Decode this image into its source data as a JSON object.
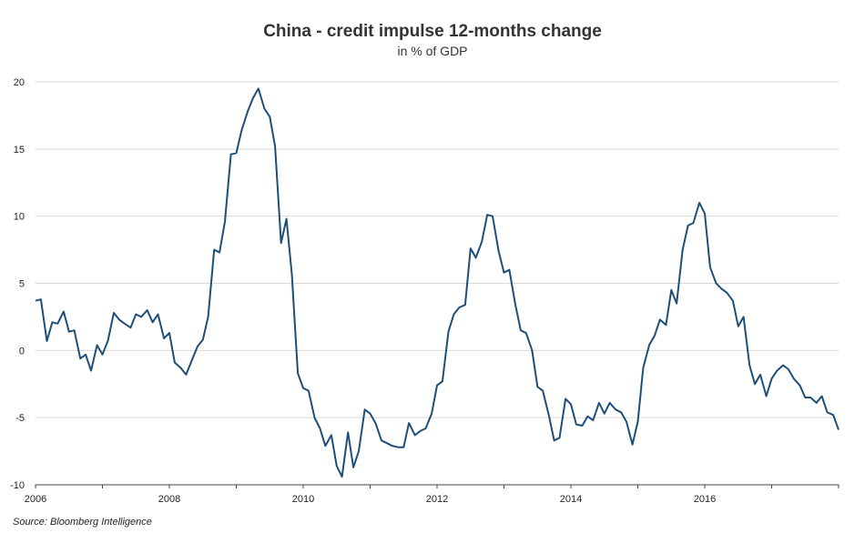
{
  "header": {
    "title": "China - credit impulse 12-months change",
    "subtitle": "in % of GDP"
  },
  "footer": {
    "source": "Source: Bloomberg Intelligence"
  },
  "chart_data": {
    "type": "line",
    "title": "China - credit impulse 12-months change",
    "subtitle": "in % of GDP",
    "xlabel": "",
    "ylabel": "",
    "xlim": [
      2006,
      2018
    ],
    "ylim": [
      -10,
      20
    ],
    "y_ticks": [
      20,
      15,
      10,
      5,
      0,
      -5,
      -10
    ],
    "x_ticks": [
      2006,
      2008,
      2010,
      2012,
      2014,
      2016
    ],
    "grid": "horizontal",
    "line_color": "#1f4e79",
    "grid_color": "#d9d9d9",
    "series": [
      {
        "values": [
          [
            2006.0,
            3.7
          ],
          [
            2006.08,
            3.8
          ],
          [
            2006.17,
            0.7
          ],
          [
            2006.25,
            2.1
          ],
          [
            2006.33,
            2.0
          ],
          [
            2006.42,
            2.9
          ],
          [
            2006.5,
            1.4
          ],
          [
            2006.58,
            1.5
          ],
          [
            2006.67,
            -0.6
          ],
          [
            2006.75,
            -0.3
          ],
          [
            2006.83,
            -1.5
          ],
          [
            2006.92,
            0.4
          ],
          [
            2007.0,
            -0.3
          ],
          [
            2007.08,
            0.7
          ],
          [
            2007.17,
            2.8
          ],
          [
            2007.25,
            2.3
          ],
          [
            2007.33,
            2.0
          ],
          [
            2007.42,
            1.7
          ],
          [
            2007.5,
            2.7
          ],
          [
            2007.58,
            2.5
          ],
          [
            2007.67,
            3.0
          ],
          [
            2007.75,
            2.1
          ],
          [
            2007.83,
            2.7
          ],
          [
            2007.92,
            0.9
          ],
          [
            2008.0,
            1.3
          ],
          [
            2008.08,
            -0.9
          ],
          [
            2008.17,
            -1.3
          ],
          [
            2008.25,
            -1.8
          ],
          [
            2008.33,
            -0.8
          ],
          [
            2008.42,
            0.3
          ],
          [
            2008.5,
            0.8
          ],
          [
            2008.58,
            2.5
          ],
          [
            2008.67,
            7.5
          ],
          [
            2008.75,
            7.3
          ],
          [
            2008.83,
            9.6
          ],
          [
            2008.92,
            14.6
          ],
          [
            2009.0,
            14.7
          ],
          [
            2009.08,
            16.4
          ],
          [
            2009.17,
            17.8
          ],
          [
            2009.25,
            18.8
          ],
          [
            2009.33,
            19.5
          ],
          [
            2009.42,
            18.0
          ],
          [
            2009.5,
            17.4
          ],
          [
            2009.58,
            15.2
          ],
          [
            2009.67,
            8.0
          ],
          [
            2009.75,
            9.8
          ],
          [
            2009.83,
            5.7
          ],
          [
            2009.92,
            -1.7
          ],
          [
            2010.0,
            -2.8
          ],
          [
            2010.08,
            -3.0
          ],
          [
            2010.17,
            -5.0
          ],
          [
            2010.25,
            -5.8
          ],
          [
            2010.33,
            -7.1
          ],
          [
            2010.42,
            -6.3
          ],
          [
            2010.5,
            -8.6
          ],
          [
            2010.58,
            -9.4
          ],
          [
            2010.67,
            -6.1
          ],
          [
            2010.75,
            -8.7
          ],
          [
            2010.83,
            -7.5
          ],
          [
            2010.92,
            -4.4
          ],
          [
            2011.0,
            -4.7
          ],
          [
            2011.08,
            -5.4
          ],
          [
            2011.17,
            -6.7
          ],
          [
            2011.25,
            -6.9
          ],
          [
            2011.33,
            -7.1
          ],
          [
            2011.42,
            -7.2
          ],
          [
            2011.5,
            -7.2
          ],
          [
            2011.58,
            -5.4
          ],
          [
            2011.67,
            -6.3
          ],
          [
            2011.75,
            -6.0
          ],
          [
            2011.83,
            -5.8
          ],
          [
            2011.92,
            -4.7
          ],
          [
            2012.0,
            -2.6
          ],
          [
            2012.08,
            -2.3
          ],
          [
            2012.17,
            1.4
          ],
          [
            2012.25,
            2.7
          ],
          [
            2012.33,
            3.2
          ],
          [
            2012.42,
            3.4
          ],
          [
            2012.5,
            7.6
          ],
          [
            2012.58,
            6.9
          ],
          [
            2012.67,
            8.1
          ],
          [
            2012.75,
            10.1
          ],
          [
            2012.83,
            10.0
          ],
          [
            2012.92,
            7.4
          ],
          [
            2013.0,
            5.8
          ],
          [
            2013.08,
            6.0
          ],
          [
            2013.17,
            3.4
          ],
          [
            2013.25,
            1.5
          ],
          [
            2013.33,
            1.3
          ],
          [
            2013.42,
            0.0
          ],
          [
            2013.5,
            -2.7
          ],
          [
            2013.58,
            -3.0
          ],
          [
            2013.67,
            -4.8
          ],
          [
            2013.75,
            -6.7
          ],
          [
            2013.83,
            -6.5
          ],
          [
            2013.92,
            -3.6
          ],
          [
            2014.0,
            -4.0
          ],
          [
            2014.08,
            -5.5
          ],
          [
            2014.17,
            -5.6
          ],
          [
            2014.25,
            -4.9
          ],
          [
            2014.33,
            -5.2
          ],
          [
            2014.42,
            -3.9
          ],
          [
            2014.5,
            -4.7
          ],
          [
            2014.58,
            -3.9
          ],
          [
            2014.67,
            -4.4
          ],
          [
            2014.75,
            -4.6
          ],
          [
            2014.83,
            -5.3
          ],
          [
            2014.92,
            -7.0
          ],
          [
            2015.0,
            -5.3
          ],
          [
            2015.08,
            -1.3
          ],
          [
            2015.17,
            0.4
          ],
          [
            2015.25,
            1.1
          ],
          [
            2015.33,
            2.3
          ],
          [
            2015.42,
            1.9
          ],
          [
            2015.5,
            4.5
          ],
          [
            2015.58,
            3.5
          ],
          [
            2015.67,
            7.5
          ],
          [
            2015.75,
            9.3
          ],
          [
            2015.83,
            9.5
          ],
          [
            2015.92,
            11.0
          ],
          [
            2016.0,
            10.2
          ],
          [
            2016.08,
            6.2
          ],
          [
            2016.17,
            5.0
          ],
          [
            2016.25,
            4.6
          ],
          [
            2016.33,
            4.3
          ],
          [
            2016.42,
            3.7
          ],
          [
            2016.5,
            1.8
          ],
          [
            2016.58,
            2.5
          ],
          [
            2016.67,
            -1.1
          ],
          [
            2016.75,
            -2.5
          ],
          [
            2016.83,
            -1.8
          ],
          [
            2016.92,
            -3.4
          ],
          [
            2017.0,
            -2.1
          ],
          [
            2017.08,
            -1.5
          ],
          [
            2017.17,
            -1.1
          ],
          [
            2017.25,
            -1.4
          ],
          [
            2017.33,
            -2.1
          ],
          [
            2017.42,
            -2.6
          ],
          [
            2017.5,
            -3.5
          ],
          [
            2017.58,
            -3.5
          ],
          [
            2017.67,
            -3.9
          ],
          [
            2017.75,
            -3.4
          ],
          [
            2017.83,
            -4.6
          ],
          [
            2017.92,
            -4.8
          ],
          [
            2018.0,
            -5.9
          ]
        ]
      }
    ]
  }
}
